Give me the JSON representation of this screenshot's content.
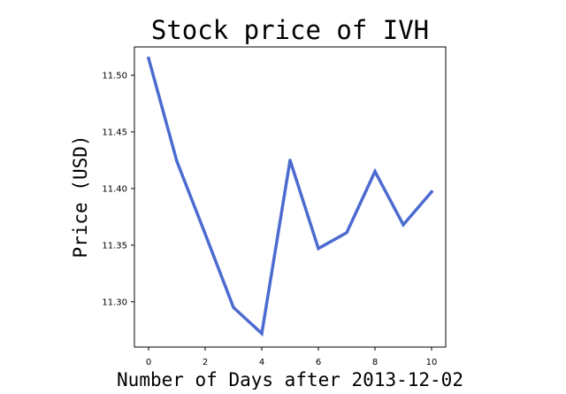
{
  "chart_data": {
    "type": "line",
    "title": "Stock price of IVH",
    "xlabel": "Number of Days after 2013-12-02",
    "ylabel": "Price (USD)",
    "x": [
      0,
      1,
      2,
      3,
      4,
      5,
      6,
      7,
      8,
      9,
      10
    ],
    "series": [
      {
        "values": [
          11.515,
          11.424,
          11.36,
          11.295,
          11.272,
          11.425,
          11.347,
          11.361,
          11.415,
          11.368,
          11.397
        ],
        "color": "#4c6bd0"
      }
    ],
    "xlim": [
      -0.5,
      10.5
    ],
    "ylim": [
      11.26,
      11.525
    ],
    "xticks": [
      0,
      2,
      4,
      6,
      8,
      10
    ],
    "xtick_labels": [
      "0",
      "2",
      "4",
      "6",
      "8",
      "10"
    ],
    "yticks": [
      11.3,
      11.35,
      11.4,
      11.45,
      11.5
    ],
    "ytick_labels": [
      "11.30",
      "11.35",
      "11.40",
      "11.45",
      "11.50"
    ],
    "grid": false
  }
}
